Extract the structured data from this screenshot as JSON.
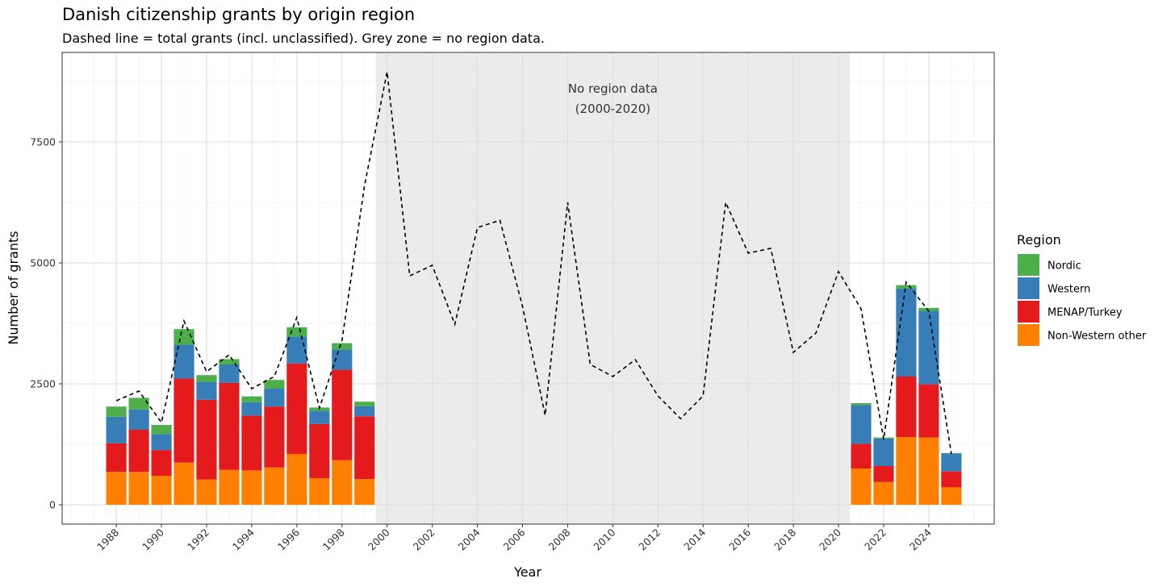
{
  "chart_data": {
    "type": "bar",
    "title": "Danish citizenship grants by origin region",
    "subtitle": "Dashed line = total grants (incl. unclassified). Grey zone = no region data.",
    "xlabel": "Year",
    "ylabel": "Number of grants",
    "xlim": [
      1985.6,
      2026.9
    ],
    "ylim": [
      -400,
      9350
    ],
    "x_ticks": [
      1988,
      1990,
      1992,
      1994,
      1996,
      1998,
      2000,
      2002,
      2004,
      2006,
      2008,
      2010,
      2012,
      2014,
      2016,
      2018,
      2020,
      2022,
      2024
    ],
    "y_ticks": [
      0,
      2500,
      5000,
      7500
    ],
    "stacked": true,
    "grid": true,
    "legend": {
      "title": "Region",
      "position": "right",
      "entries": [
        "Nordic",
        "Western",
        "MENAP/Turkey",
        "Non-Western other"
      ]
    },
    "colors": {
      "Nordic": "#4daf4a",
      "Western": "#377eb8",
      "MENAP/Turkey": "#e41a1c",
      "Non-Western other": "#ff7f00",
      "total_line": "#000000",
      "no_data_zone": "#ebebeb"
    },
    "shaded_region": {
      "x_from": 1999.5,
      "x_to": 2020.5,
      "label_line1": "No region data",
      "label_line2": "(2000-2020)"
    },
    "bar_years": [
      1988,
      1989,
      1990,
      1991,
      1992,
      1993,
      1994,
      1995,
      1996,
      1997,
      1998,
      1999,
      2021,
      2022,
      2023,
      2024,
      2025
    ],
    "series": [
      {
        "name": "Non-Western other",
        "values": [
          680,
          680,
          600,
          870,
          520,
          720,
          710,
          770,
          1050,
          550,
          920,
          530,
          750,
          470,
          1400,
          1390,
          360
        ]
      },
      {
        "name": "MENAP/Turkey",
        "values": [
          590,
          870,
          530,
          1740,
          1650,
          1800,
          1130,
          1260,
          1870,
          1120,
          1870,
          1300,
          510,
          330,
          1250,
          1100,
          330
        ]
      },
      {
        "name": "Western",
        "values": [
          550,
          420,
          330,
          700,
          370,
          380,
          280,
          370,
          560,
          270,
          420,
          210,
          800,
          570,
          1820,
          1520,
          370
        ]
      },
      {
        "name": "Nordic",
        "values": [
          210,
          240,
          190,
          320,
          140,
          110,
          120,
          180,
          190,
          70,
          130,
          90,
          40,
          20,
          70,
          60,
          10
        ]
      }
    ],
    "total_line": {
      "name": "Total grants (incl. unclassified)",
      "x": [
        1988,
        1989,
        1990,
        1991,
        1992,
        1993,
        1994,
        1995,
        1996,
        1997,
        1998,
        1999,
        2000,
        2001,
        2002,
        2003,
        2004,
        2005,
        2006,
        2007,
        2008,
        2009,
        2010,
        2011,
        2012,
        2013,
        2014,
        2015,
        2016,
        2017,
        2018,
        2019,
        2020,
        2021,
        2022,
        2023,
        2024,
        2025
      ],
      "y": [
        2150,
        2350,
        1700,
        3800,
        2750,
        3100,
        2400,
        2650,
        3870,
        2000,
        3400,
        6600,
        8950,
        4730,
        4950,
        3730,
        5730,
        5880,
        4100,
        1850,
        6250,
        2900,
        2650,
        3000,
        2250,
        1780,
        2250,
        6250,
        5200,
        5300,
        3150,
        3550,
        4820,
        4050,
        1350,
        4600,
        4000,
        1050
      ]
    }
  }
}
